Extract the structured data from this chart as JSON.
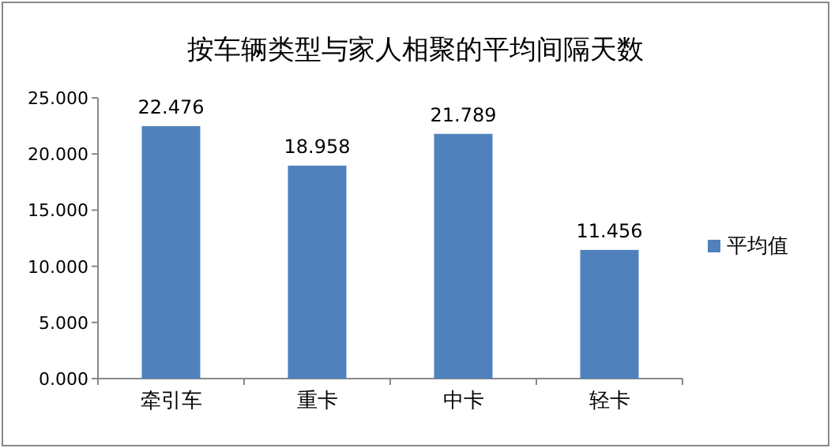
{
  "chart_data": {
    "type": "bar",
    "title": "按车辆类型与家人相聚的平均间隔天数",
    "categories": [
      "牵引车",
      "重卡",
      "中卡",
      "轻卡"
    ],
    "series": [
      {
        "name": "平均值",
        "color": "#4f81bd",
        "values": [
          22.476,
          18.958,
          21.789,
          11.456
        ]
      }
    ],
    "ylim": [
      0,
      25
    ],
    "yticks": [
      {
        "value": 0,
        "label": "0.000"
      },
      {
        "value": 5,
        "label": "5.000"
      },
      {
        "value": 10,
        "label": "10.000"
      },
      {
        "value": 15,
        "label": "15.000"
      },
      {
        "value": 20,
        "label": "20.000"
      },
      {
        "value": 25,
        "label": "25.000"
      }
    ],
    "data_labels": true,
    "legend": "right",
    "grid": false
  }
}
